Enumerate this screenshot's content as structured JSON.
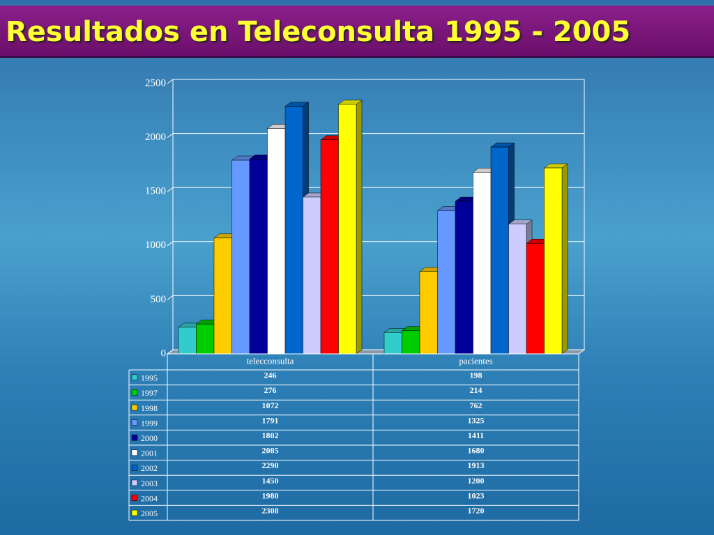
{
  "chart_data": {
    "type": "bar3d",
    "title": "Resultados en Teleconsulta 1995 - 2005",
    "categories": [
      "telecconsulta",
      "pacientes"
    ],
    "series": [
      {
        "name": "1995",
        "color": "#33cccc",
        "values": [
          246,
          198
        ]
      },
      {
        "name": "1997",
        "color": "#00cc00",
        "values": [
          276,
          214
        ]
      },
      {
        "name": "1998",
        "color": "#ffcc00",
        "values": [
          1072,
          762
        ]
      },
      {
        "name": "1999",
        "color": "#6699ff",
        "values": [
          1791,
          1325
        ]
      },
      {
        "name": "2000",
        "color": "#000099",
        "values": [
          1802,
          1411
        ]
      },
      {
        "name": "2001",
        "color": "#ffffff",
        "values": [
          2085,
          1680
        ]
      },
      {
        "name": "2002",
        "color": "#0066cc",
        "values": [
          2290,
          1913
        ]
      },
      {
        "name": "2003",
        "color": "#ccccff",
        "values": [
          1450,
          1200
        ]
      },
      {
        "name": "2004",
        "color": "#ff0000",
        "values": [
          1980,
          1023
        ]
      },
      {
        "name": "2005",
        "color": "#ffff00",
        "values": [
          2308,
          1720
        ]
      }
    ],
    "ylim": [
      0,
      2500
    ],
    "yticks": [
      0,
      500,
      1000,
      1500,
      2000,
      2500
    ],
    "grid": true
  }
}
